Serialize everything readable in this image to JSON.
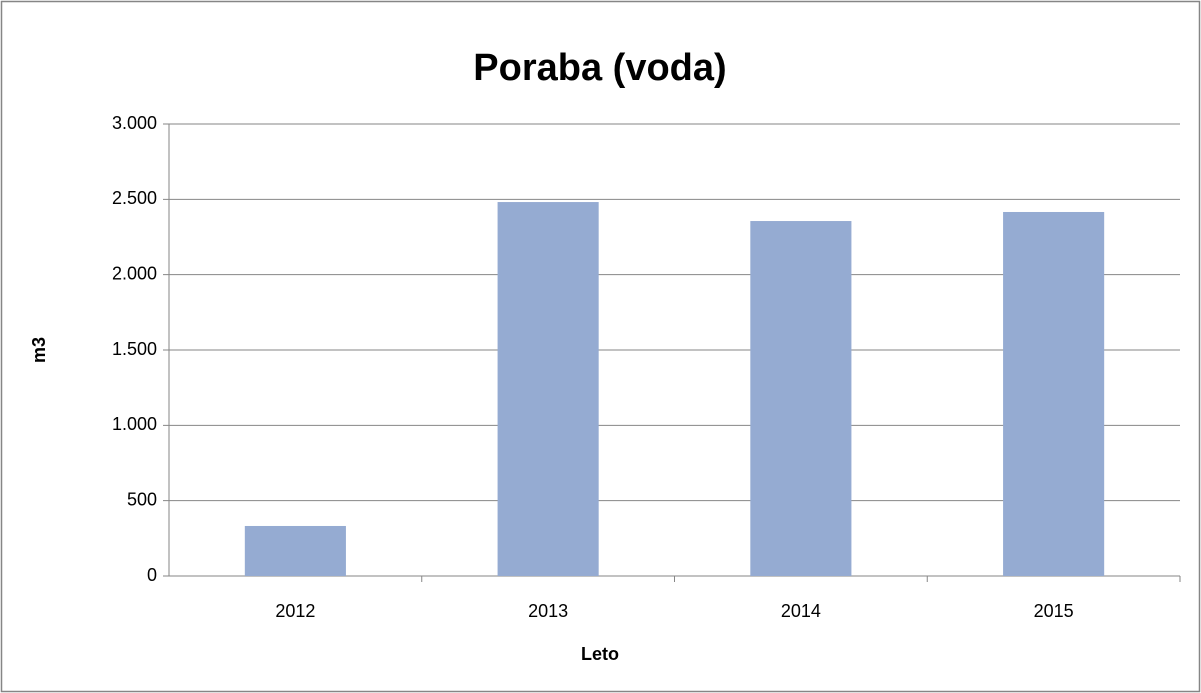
{
  "chart_data": {
    "type": "bar",
    "title": "Poraba (voda)",
    "xlabel": "Leto",
    "ylabel": "m3",
    "categories": [
      "2012",
      "2013",
      "2014",
      "2015"
    ],
    "values": [
      332,
      2482,
      2356,
      2416
    ],
    "color": "#95abd2",
    "ylim": [
      0,
      3000
    ],
    "yticks": [
      0,
      500,
      {
        "value": 1000,
        "label": "1.000"
      },
      {
        "value": 1500,
        "label": "1.500"
      },
      {
        "value": 2000,
        "label": "2.000"
      },
      {
        "value": 2500,
        "label": "2.500"
      },
      {
        "value": 3000,
        "label": "3.000"
      }
    ],
    "grid": true
  }
}
